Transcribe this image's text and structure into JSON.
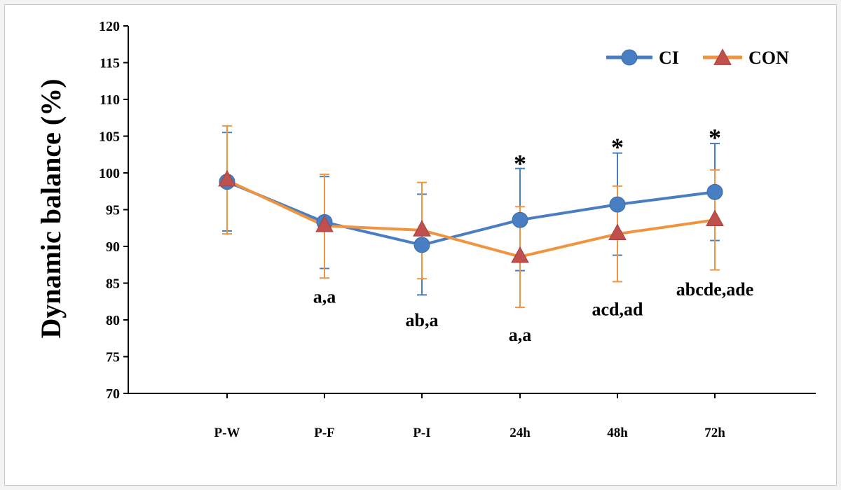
{
  "chart_data": {
    "type": "line",
    "title": "",
    "xlabel": "",
    "ylabel": "Dynamic balance (%)",
    "ylim": [
      70,
      120
    ],
    "yticks": [
      70,
      75,
      80,
      85,
      90,
      95,
      100,
      105,
      110,
      115,
      120
    ],
    "categories": [
      "P-W",
      "P-F",
      "P-I",
      "24h",
      "48h",
      "72h"
    ],
    "grid": false,
    "legend_position": "top-right",
    "series": [
      {
        "name": "CI",
        "color": "#4a7ec2",
        "marker": "circle",
        "values": [
          98.8,
          93.3,
          90.2,
          93.6,
          95.7,
          97.4
        ],
        "err_high": [
          105.5,
          99.5,
          97.1,
          100.6,
          102.7,
          104.0
        ],
        "err_low": [
          92.1,
          87.0,
          83.4,
          86.7,
          88.8,
          90.8
        ]
      },
      {
        "name": "CON",
        "color": "#f0953f",
        "marker_color": "#c0504d",
        "marker": "triangle",
        "values": [
          99.0,
          92.8,
          92.2,
          88.6,
          91.7,
          93.6
        ],
        "err_high": [
          106.4,
          99.8,
          98.7,
          95.4,
          98.2,
          100.4
        ],
        "err_low": [
          91.7,
          85.7,
          85.6,
          81.7,
          85.2,
          86.8
        ]
      }
    ],
    "annotations": [
      {
        "category": "P-F",
        "text": "a,a",
        "y": 83.2
      },
      {
        "category": "P-I",
        "text": "ab,a",
        "y": 80.0
      },
      {
        "category": "24h",
        "text": "a,a",
        "y": 78.0
      },
      {
        "category": "48h",
        "text": "acd,ad",
        "y": 81.5
      },
      {
        "category": "72h",
        "text": "abcde,ade",
        "y": 84.2
      }
    ],
    "significance_markers": [
      {
        "category": "24h",
        "text": "*",
        "y": 101.5
      },
      {
        "category": "48h",
        "text": "*",
        "y": 103.7
      },
      {
        "category": "72h",
        "text": "*",
        "y": 105.0
      }
    ]
  }
}
